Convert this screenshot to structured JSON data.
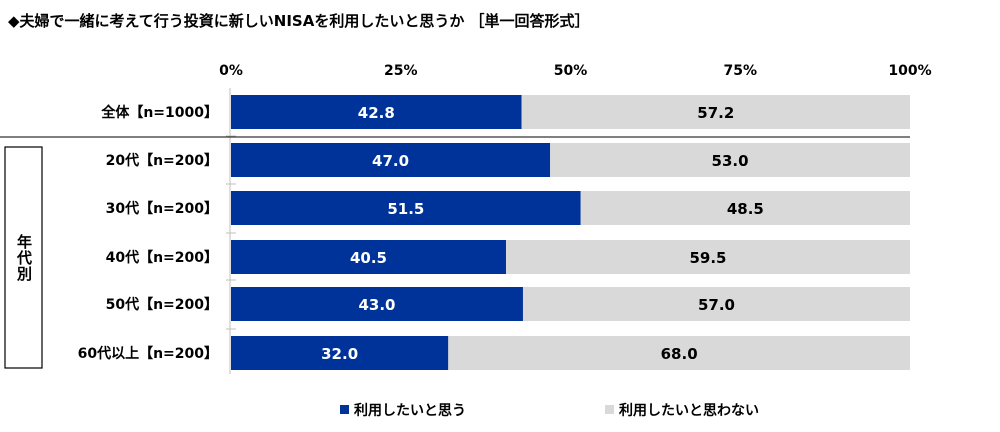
{
  "chart_data": {
    "type": "bar",
    "stacked": true,
    "orientation": "horizontal",
    "title": "◆夫婦で一緒に考えて行う投資に新しいNISAを利用したいと思うか ［単一回答形式］",
    "group_label": "年代別",
    "categories": [
      "全体【n=1000】",
      "20代【n=200】",
      "30代【n=200】",
      "40代【n=200】",
      "50代【n=200】",
      "60代以上【n=200】"
    ],
    "series": [
      {
        "name": "利用したいと思う",
        "color": "#003399",
        "values": [
          42.8,
          47.0,
          51.5,
          40.5,
          43.0,
          32.0
        ]
      },
      {
        "name": "利用したいと思わない",
        "color": "#d9d9d9",
        "values": [
          57.2,
          53.0,
          48.5,
          59.5,
          57.0,
          68.0
        ]
      }
    ],
    "xticks": [
      "0%",
      "25%",
      "50%",
      "75%",
      "100%"
    ],
    "xlim": [
      0,
      100
    ],
    "legend": "bottom",
    "grid": false
  }
}
